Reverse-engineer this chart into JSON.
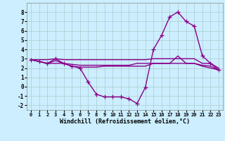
{
  "xlabel": "Windchill (Refroidissement éolien,°C)",
  "xlim": [
    -0.5,
    23.5
  ],
  "ylim": [
    -2.5,
    9.0
  ],
  "yticks": [
    -2,
    -1,
    0,
    1,
    2,
    3,
    4,
    5,
    6,
    7,
    8
  ],
  "xticks": [
    0,
    1,
    2,
    3,
    4,
    5,
    6,
    7,
    8,
    9,
    10,
    11,
    12,
    13,
    14,
    15,
    16,
    17,
    18,
    19,
    20,
    21,
    22,
    23
  ],
  "background_color": "#cceeff",
  "grid_color": "#aacccc",
  "line_color": "#880088",
  "line_width": 1.0,
  "marker": "+",
  "marker_size": 4,
  "series": {
    "main": [
      2.9,
      2.7,
      2.5,
      3.0,
      2.5,
      2.2,
      2.0,
      0.5,
      -0.8,
      -1.1,
      -1.1,
      -1.1,
      -1.3,
      -1.8,
      -0.1,
      4.0,
      5.5,
      7.5,
      8.0,
      7.0,
      6.5,
      3.3,
      2.5,
      1.8
    ],
    "upper": [
      2.9,
      2.9,
      2.9,
      3.0,
      2.9,
      2.9,
      2.9,
      2.9,
      2.9,
      2.9,
      2.9,
      2.9,
      2.9,
      2.9,
      2.9,
      3.0,
      3.0,
      3.0,
      3.0,
      3.0,
      3.0,
      2.5,
      2.5,
      2.0
    ],
    "mid": [
      2.9,
      2.7,
      2.5,
      2.8,
      2.5,
      2.4,
      2.3,
      2.3,
      2.3,
      2.3,
      2.3,
      2.3,
      2.3,
      2.5,
      2.5,
      2.5,
      2.5,
      2.5,
      3.3,
      2.5,
      2.5,
      2.3,
      2.2,
      1.8
    ],
    "lower": [
      2.9,
      2.7,
      2.5,
      2.5,
      2.5,
      2.2,
      2.1,
      2.1,
      2.1,
      2.2,
      2.2,
      2.2,
      2.2,
      2.2,
      2.2,
      2.5,
      2.5,
      2.5,
      2.5,
      2.5,
      2.5,
      2.2,
      2.0,
      1.8
    ]
  }
}
